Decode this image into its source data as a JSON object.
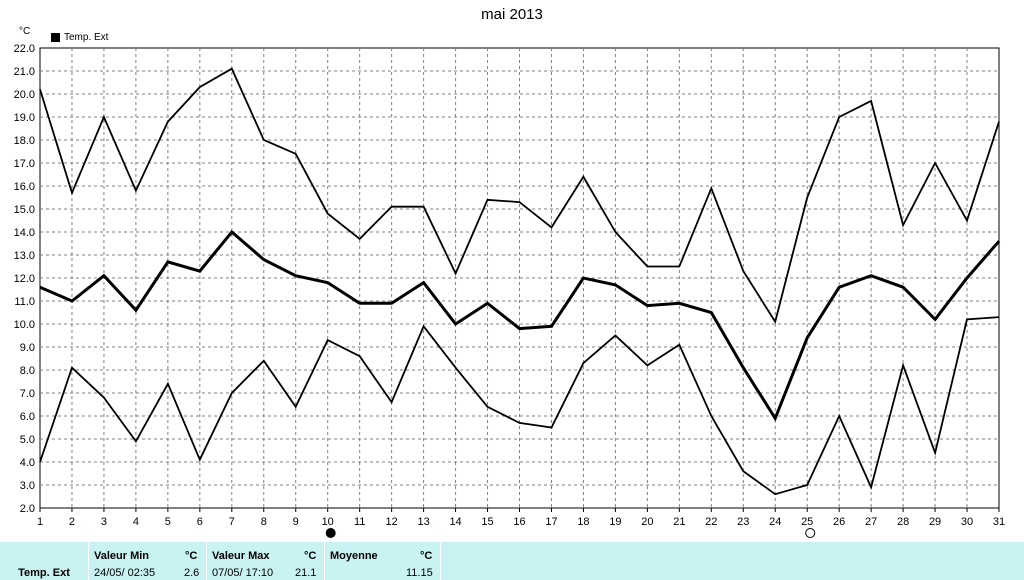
{
  "chart_data": {
    "type": "line",
    "title": "mai 2013",
    "ylabel": "°C",
    "ylim": [
      2.0,
      22.0
    ],
    "y_ticks": [
      "2.0",
      "3.0",
      "4.0",
      "5.0",
      "6.0",
      "7.0",
      "8.0",
      "9.0",
      "10.0",
      "11.0",
      "12.0",
      "13.0",
      "14.0",
      "15.0",
      "16.0",
      "17.0",
      "18.0",
      "19.0",
      "20.0",
      "21.0",
      "22.0"
    ],
    "x": [
      1,
      2,
      3,
      4,
      5,
      6,
      7,
      8,
      9,
      10,
      11,
      12,
      13,
      14,
      15,
      16,
      17,
      18,
      19,
      20,
      21,
      22,
      23,
      24,
      25,
      26,
      27,
      28,
      29,
      30,
      31
    ],
    "grid": true,
    "legend": "top-left",
    "legend_label": "Temp. Ext",
    "series": [
      {
        "values": [
          20.2,
          15.7,
          19.0,
          15.8,
          18.8,
          20.3,
          21.1,
          18.0,
          17.4,
          14.8,
          13.7,
          15.1,
          15.1,
          12.2,
          15.4,
          15.3,
          14.2,
          16.4,
          14.0,
          12.5,
          12.5,
          15.9,
          12.3,
          10.1,
          15.5,
          19.0,
          19.7,
          14.3,
          17.0,
          14.5,
          18.8
        ]
      },
      {
        "values": [
          11.6,
          11.0,
          12.1,
          10.6,
          12.7,
          12.3,
          14.0,
          12.8,
          12.1,
          11.8,
          10.9,
          10.9,
          11.8,
          10.0,
          10.9,
          9.8,
          9.9,
          12.0,
          11.7,
          10.8,
          10.9,
          10.5,
          8.1,
          5.9,
          9.4,
          11.6,
          12.1,
          11.6,
          10.2,
          12.0,
          13.6
        ]
      },
      {
        "values": [
          4.0,
          8.1,
          6.8,
          4.9,
          7.4,
          4.1,
          7.0,
          8.4,
          6.4,
          9.3,
          8.6,
          6.6,
          9.9,
          8.1,
          6.4,
          5.7,
          5.5,
          8.3,
          9.5,
          8.2,
          9.1,
          6.0,
          3.6,
          2.6,
          3.0,
          6.0,
          2.9,
          8.2,
          4.4,
          10.2,
          10.3
        ]
      }
    ],
    "moon_markers": [
      {
        "day": 10,
        "phase": "new-moon"
      },
      {
        "day": 25,
        "phase": "full-moon"
      }
    ]
  },
  "stats": {
    "row_label": "Temp. Ext",
    "min_header": "Valeur Min",
    "min_unit": "°C",
    "min_date": "24/05/  02:35",
    "min_value": "2.6",
    "max_header": "Valeur Max",
    "max_unit": "°C",
    "max_date": "07/05/  17:10",
    "max_value": "21.1",
    "avg_header": "Moyenne",
    "avg_unit": "°C",
    "avg_value": "11.15"
  },
  "colors": {
    "line": "#000000",
    "grid": "#808080",
    "footer_bg": "#c9f2f2"
  }
}
